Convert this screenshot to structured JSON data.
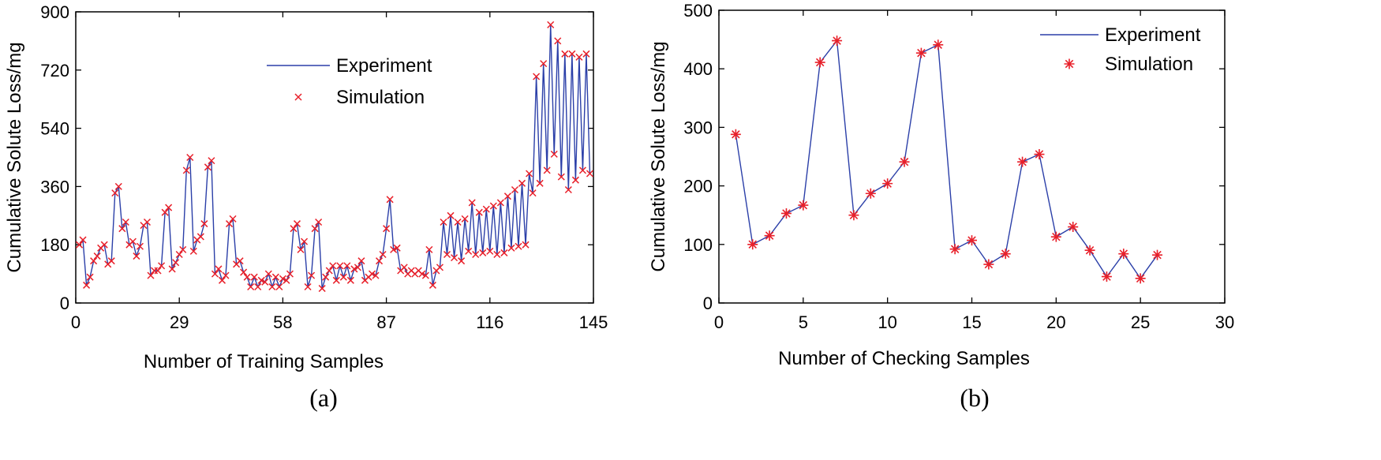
{
  "chart_data": [
    {
      "type": "line",
      "caption": "(a)",
      "xlabel": "Number of Training Samples",
      "ylabel": "Cumulative Solute Loss/mg",
      "xlim": [
        0,
        145
      ],
      "ylim": [
        0,
        900
      ],
      "xticks": [
        0,
        29,
        58,
        87,
        116,
        145
      ],
      "yticks": [
        0,
        180,
        360,
        540,
        720,
        900
      ],
      "xtick_labels": [
        "0",
        "29",
        "58",
        "87",
        "116",
        "145"
      ],
      "ytick_labels": [
        "0",
        "180",
        "360",
        "540",
        "720",
        "900"
      ],
      "legend": {
        "position": "top-center",
        "entries": [
          "Experiment",
          "Simulation"
        ]
      },
      "series": [
        {
          "name": "Experiment",
          "style": "line",
          "color": "#2b3fa8",
          "x": [
            1,
            2,
            3,
            4,
            5,
            6,
            7,
            8,
            9,
            10,
            11,
            12,
            13,
            14,
            15,
            16,
            17,
            18,
            19,
            20,
            21,
            22,
            23,
            24,
            25,
            26,
            27,
            28,
            29,
            30,
            31,
            32,
            33,
            34,
            35,
            36,
            37,
            38,
            39,
            40,
            41,
            42,
            43,
            44,
            45,
            46,
            47,
            48,
            49,
            50,
            51,
            52,
            53,
            54,
            55,
            56,
            57,
            58,
            59,
            60,
            61,
            62,
            63,
            64,
            65,
            66,
            67,
            68,
            69,
            70,
            71,
            72,
            73,
            74,
            75,
            76,
            77,
            78,
            79,
            80,
            81,
            82,
            83,
            84,
            85,
            86,
            87,
            88,
            89,
            90,
            91,
            92,
            93,
            94,
            95,
            96,
            97,
            98,
            99,
            100,
            101,
            102,
            103,
            104,
            105,
            106,
            107,
            108,
            109,
            110,
            111,
            112,
            113,
            114,
            115,
            116,
            117,
            118,
            119,
            120,
            121,
            122,
            123,
            124,
            125,
            126,
            127,
            128,
            129,
            130,
            131,
            132,
            133,
            134,
            135,
            136,
            137,
            138,
            139,
            140,
            141,
            142,
            143,
            144
          ],
          "y": [
            180,
            195,
            55,
            80,
            130,
            145,
            170,
            180,
            120,
            130,
            340,
            360,
            230,
            250,
            180,
            190,
            145,
            175,
            240,
            250,
            85,
            100,
            100,
            115,
            280,
            295,
            105,
            125,
            150,
            165,
            410,
            450,
            160,
            195,
            205,
            245,
            420,
            440,
            90,
            105,
            70,
            85,
            245,
            260,
            120,
            130,
            95,
            80,
            50,
            80,
            50,
            70,
            65,
            90,
            50,
            80,
            50,
            75,
            70,
            90,
            230,
            245,
            165,
            190,
            50,
            85,
            230,
            250,
            45,
            80,
            100,
            115,
            70,
            115,
            80,
            115,
            70,
            105,
            110,
            130,
            70,
            80,
            90,
            85,
            130,
            150,
            230,
            320,
            165,
            170,
            100,
            110,
            90,
            100,
            90,
            100,
            90,
            85,
            165,
            55,
            100,
            110,
            250,
            150,
            270,
            140,
            250,
            130,
            260,
            160,
            310,
            150,
            280,
            155,
            290,
            160,
            300,
            150,
            310,
            155,
            330,
            170,
            350,
            175,
            370,
            180,
            400,
            340,
            700,
            370,
            740,
            410,
            860,
            460,
            810,
            390,
            770,
            350,
            770,
            380,
            760,
            410,
            770,
            400
          ]
        },
        {
          "name": "Simulation",
          "style": "marker-x",
          "color": "#e8202a",
          "x": [
            1,
            2,
            3,
            4,
            5,
            6,
            7,
            8,
            9,
            10,
            11,
            12,
            13,
            14,
            15,
            16,
            17,
            18,
            19,
            20,
            21,
            22,
            23,
            24,
            25,
            26,
            27,
            28,
            29,
            30,
            31,
            32,
            33,
            34,
            35,
            36,
            37,
            38,
            39,
            40,
            41,
            42,
            43,
            44,
            45,
            46,
            47,
            48,
            49,
            50,
            51,
            52,
            53,
            54,
            55,
            56,
            57,
            58,
            59,
            60,
            61,
            62,
            63,
            64,
            65,
            66,
            67,
            68,
            69,
            70,
            71,
            72,
            73,
            74,
            75,
            76,
            77,
            78,
            79,
            80,
            81,
            82,
            83,
            84,
            85,
            86,
            87,
            88,
            89,
            90,
            91,
            92,
            93,
            94,
            95,
            96,
            97,
            98,
            99,
            100,
            101,
            102,
            103,
            104,
            105,
            106,
            107,
            108,
            109,
            110,
            111,
            112,
            113,
            114,
            115,
            116,
            117,
            118,
            119,
            120,
            121,
            122,
            123,
            124,
            125,
            126,
            127,
            128,
            129,
            130,
            131,
            132,
            133,
            134,
            135,
            136,
            137,
            138,
            139,
            140,
            141,
            142,
            143,
            144
          ],
          "y": [
            180,
            195,
            55,
            80,
            130,
            145,
            170,
            180,
            120,
            130,
            340,
            360,
            230,
            250,
            180,
            190,
            145,
            175,
            240,
            250,
            85,
            100,
            100,
            115,
            280,
            295,
            105,
            125,
            150,
            165,
            410,
            450,
            160,
            195,
            205,
            245,
            420,
            440,
            90,
            105,
            70,
            85,
            245,
            260,
            120,
            130,
            95,
            80,
            50,
            80,
            50,
            70,
            65,
            90,
            50,
            80,
            50,
            75,
            70,
            90,
            230,
            245,
            165,
            190,
            50,
            85,
            230,
            250,
            45,
            80,
            100,
            115,
            70,
            115,
            80,
            115,
            70,
            105,
            110,
            130,
            70,
            80,
            90,
            85,
            130,
            150,
            230,
            320,
            165,
            170,
            100,
            110,
            90,
            100,
            90,
            100,
            90,
            85,
            165,
            55,
            100,
            110,
            250,
            150,
            270,
            140,
            250,
            130,
            260,
            160,
            310,
            150,
            280,
            155,
            290,
            160,
            300,
            150,
            310,
            155,
            330,
            170,
            350,
            175,
            370,
            180,
            400,
            340,
            700,
            370,
            740,
            410,
            860,
            460,
            810,
            390,
            770,
            350,
            770,
            380,
            760,
            410,
            770,
            400
          ]
        }
      ]
    },
    {
      "type": "line",
      "caption": "(b)",
      "xlabel": "Number of Checking Samples",
      "ylabel": "Cumulative Solute Loss/mg",
      "xlim": [
        0,
        30
      ],
      "ylim": [
        0,
        500
      ],
      "xticks": [
        0,
        5,
        10,
        15,
        20,
        25,
        30
      ],
      "yticks": [
        0,
        100,
        200,
        300,
        400,
        500
      ],
      "xtick_labels": [
        "0",
        "5",
        "10",
        "15",
        "20",
        "25",
        "30"
      ],
      "ytick_labels": [
        "0",
        "100",
        "200",
        "300",
        "400",
        "500"
      ],
      "legend": {
        "position": "top-right",
        "entries": [
          "Experiment",
          "Simulation"
        ]
      },
      "series": [
        {
          "name": "Experiment",
          "style": "line",
          "color": "#2b3fa8",
          "x": [
            1,
            2,
            3,
            4,
            5,
            6,
            7,
            8,
            9,
            10,
            11,
            12,
            13,
            14,
            15,
            16,
            17,
            18,
            19,
            20,
            21,
            22,
            23,
            24,
            25,
            26
          ],
          "y": [
            288,
            100,
            115,
            153,
            167,
            411,
            448,
            150,
            187,
            204,
            241,
            427,
            441,
            92,
            107,
            66,
            84,
            241,
            254,
            113,
            130,
            90,
            45,
            84,
            42,
            82
          ]
        },
        {
          "name": "Simulation",
          "style": "marker-star",
          "color": "#e8202a",
          "x": [
            1,
            2,
            3,
            4,
            5,
            6,
            7,
            8,
            9,
            10,
            11,
            12,
            13,
            14,
            15,
            16,
            17,
            18,
            19,
            20,
            21,
            22,
            23,
            24,
            25,
            26
          ],
          "y": [
            288,
            100,
            115,
            153,
            167,
            411,
            448,
            150,
            187,
            204,
            241,
            427,
            441,
            92,
            107,
            66,
            84,
            241,
            254,
            113,
            130,
            90,
            45,
            84,
            42,
            82
          ]
        }
      ]
    }
  ]
}
